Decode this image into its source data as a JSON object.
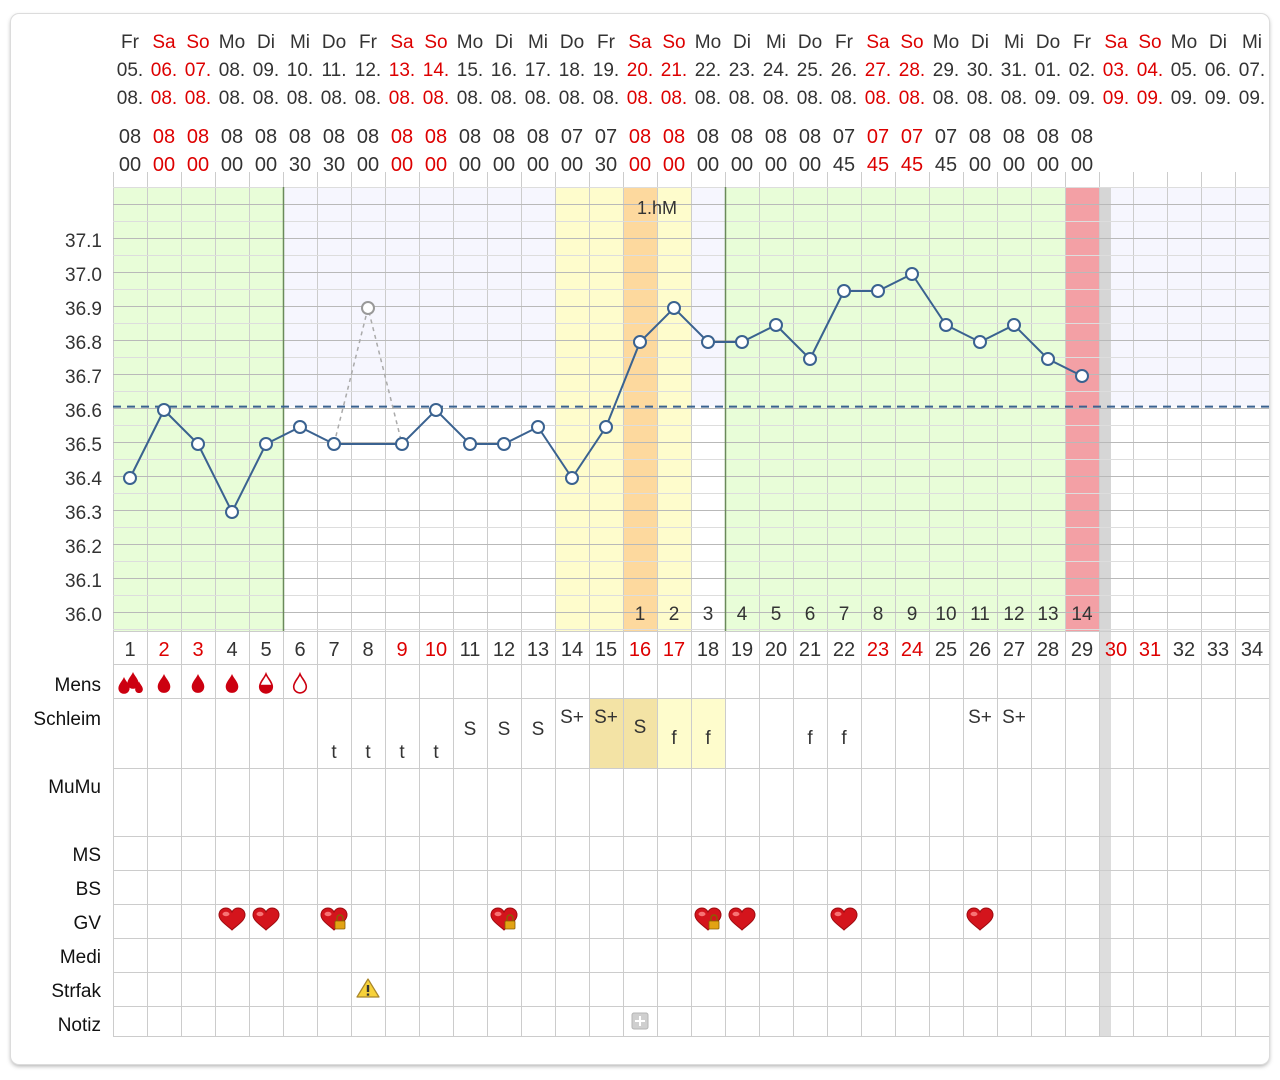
{
  "colors": {
    "weekend_red": "#dd0000",
    "text": "#333333",
    "grid": "#cccccc",
    "line": "#3a6290",
    "dashed": "#3a6290",
    "infertile_bg": "#e8fdd8",
    "yellow_bg": "#fefccc",
    "orange_bg": "#fdd99e",
    "red_bg": "#f3a0a5",
    "lavender_bg": "#f6f6fe",
    "gray_col": "#dddddd"
  },
  "days": [
    {
      "wd": "Fr",
      "day": "05.",
      "month": "08.",
      "hh": "08",
      "mm": "00",
      "weekend": false
    },
    {
      "wd": "Sa",
      "day": "06.",
      "month": "08.",
      "hh": "08",
      "mm": "00",
      "weekend": true
    },
    {
      "wd": "So",
      "day": "07.",
      "month": "08.",
      "hh": "08",
      "mm": "00",
      "weekend": true
    },
    {
      "wd": "Mo",
      "day": "08.",
      "month": "08.",
      "hh": "08",
      "mm": "00",
      "weekend": false
    },
    {
      "wd": "Di",
      "day": "09.",
      "month": "08.",
      "hh": "08",
      "mm": "00",
      "weekend": false
    },
    {
      "wd": "Mi",
      "day": "10.",
      "month": "08.",
      "hh": "08",
      "mm": "30",
      "weekend": false
    },
    {
      "wd": "Do",
      "day": "11.",
      "month": "08.",
      "hh": "08",
      "mm": "30",
      "weekend": false
    },
    {
      "wd": "Fr",
      "day": "12.",
      "month": "08.",
      "hh": "08",
      "mm": "00",
      "weekend": false
    },
    {
      "wd": "Sa",
      "day": "13.",
      "month": "08.",
      "hh": "08",
      "mm": "00",
      "weekend": true
    },
    {
      "wd": "So",
      "day": "14.",
      "month": "08.",
      "hh": "08",
      "mm": "00",
      "weekend": true
    },
    {
      "wd": "Mo",
      "day": "15.",
      "month": "08.",
      "hh": "08",
      "mm": "00",
      "weekend": false
    },
    {
      "wd": "Di",
      "day": "16.",
      "month": "08.",
      "hh": "08",
      "mm": "00",
      "weekend": false
    },
    {
      "wd": "Mi",
      "day": "17.",
      "month": "08.",
      "hh": "08",
      "mm": "00",
      "weekend": false
    },
    {
      "wd": "Do",
      "day": "18.",
      "month": "08.",
      "hh": "07",
      "mm": "00",
      "weekend": false
    },
    {
      "wd": "Fr",
      "day": "19.",
      "month": "08.",
      "hh": "07",
      "mm": "30",
      "weekend": false
    },
    {
      "wd": "Sa",
      "day": "20.",
      "month": "08.",
      "hh": "08",
      "mm": "00",
      "weekend": true
    },
    {
      "wd": "So",
      "day": "21.",
      "month": "08.",
      "hh": "08",
      "mm": "00",
      "weekend": true
    },
    {
      "wd": "Mo",
      "day": "22.",
      "month": "08.",
      "hh": "08",
      "mm": "00",
      "weekend": false
    },
    {
      "wd": "Di",
      "day": "23.",
      "month": "08.",
      "hh": "08",
      "mm": "00",
      "weekend": false
    },
    {
      "wd": "Mi",
      "day": "24.",
      "month": "08.",
      "hh": "08",
      "mm": "00",
      "weekend": false
    },
    {
      "wd": "Do",
      "day": "25.",
      "month": "08.",
      "hh": "08",
      "mm": "00",
      "weekend": false
    },
    {
      "wd": "Fr",
      "day": "26.",
      "month": "08.",
      "hh": "07",
      "mm": "45",
      "weekend": false
    },
    {
      "wd": "Sa",
      "day": "27.",
      "month": "08.",
      "hh": "07",
      "mm": "45",
      "weekend": true
    },
    {
      "wd": "So",
      "day": "28.",
      "month": "08.",
      "hh": "07",
      "mm": "45",
      "weekend": true
    },
    {
      "wd": "Mo",
      "day": "29.",
      "month": "08.",
      "hh": "07",
      "mm": "45",
      "weekend": false
    },
    {
      "wd": "Di",
      "day": "30.",
      "month": "08.",
      "hh": "08",
      "mm": "00",
      "weekend": false
    },
    {
      "wd": "Mi",
      "day": "31.",
      "month": "08.",
      "hh": "08",
      "mm": "00",
      "weekend": false
    },
    {
      "wd": "Do",
      "day": "01.",
      "month": "09.",
      "hh": "08",
      "mm": "00",
      "weekend": false
    },
    {
      "wd": "Fr",
      "day": "02.",
      "month": "09.",
      "hh": "08",
      "mm": "00",
      "weekend": false
    },
    {
      "wd": "Sa",
      "day": "03.",
      "month": "09.",
      "hh": "",
      "mm": "",
      "weekend": true
    },
    {
      "wd": "So",
      "day": "04.",
      "month": "09.",
      "hh": "",
      "mm": "",
      "weekend": true
    },
    {
      "wd": "Mo",
      "day": "05.",
      "month": "09.",
      "hh": "",
      "mm": "",
      "weekend": false
    },
    {
      "wd": "Di",
      "day": "06.",
      "month": "09.",
      "hh": "",
      "mm": "",
      "weekend": false
    },
    {
      "wd": "Mi",
      "day": "07.",
      "month": "09.",
      "hh": "",
      "mm": "",
      "weekend": false
    }
  ],
  "cycle_days": [
    "1",
    "2",
    "3",
    "4",
    "5",
    "6",
    "7",
    "8",
    "9",
    "10",
    "11",
    "12",
    "13",
    "14",
    "15",
    "16",
    "17",
    "18",
    "19",
    "20",
    "21",
    "22",
    "23",
    "24",
    "25",
    "26",
    "27",
    "28",
    "29",
    "30",
    "31",
    "32",
    "33",
    "34"
  ],
  "row_labels": [
    "Mens",
    "Schleim",
    "MuMu",
    "MS",
    "BS",
    "GV",
    "Medi",
    "Strfak",
    "Notiz"
  ],
  "chart_data": {
    "type": "line",
    "x": [
      1,
      2,
      3,
      4,
      5,
      6,
      7,
      8,
      9,
      10,
      11,
      12,
      13,
      14,
      15,
      16,
      17,
      18,
      19,
      20,
      21,
      22,
      23,
      24,
      25,
      26,
      27,
      28,
      29
    ],
    "series": [
      {
        "values": [
          36.4,
          36.6,
          36.5,
          36.3,
          36.5,
          36.55,
          36.5,
          36.9,
          36.5,
          36.6,
          36.5,
          36.5,
          36.55,
          36.4,
          36.55,
          36.8,
          36.9,
          36.8,
          36.8,
          36.85,
          36.75,
          36.95,
          36.95,
          37.0,
          36.85,
          36.8,
          36.85,
          36.75,
          36.7
        ],
        "excluded_days": [
          8
        ]
      }
    ],
    "y_ticks": [
      "37.1",
      "37.0",
      "36.9",
      "36.8",
      "36.7",
      "36.6",
      "36.5",
      "36.4",
      "36.3",
      "36.2",
      "36.1",
      "36.0"
    ],
    "ylim": [
      35.9,
      37.2
    ],
    "coverline": 36.61,
    "annotation": "1.hM",
    "post_ovulation_days": [
      "1",
      "2",
      "3",
      "4",
      "5",
      "6",
      "7",
      "8",
      "9",
      "10",
      "11",
      "12",
      "13",
      "14"
    ],
    "post_ovulation_start_day": 16,
    "grid": true
  },
  "mens": [
    {
      "day": 1,
      "icon": "heavy-blood-drops-icon"
    },
    {
      "day": 2,
      "icon": "blood-drop-icon"
    },
    {
      "day": 3,
      "icon": "blood-drop-icon"
    },
    {
      "day": 4,
      "icon": "blood-drop-icon"
    },
    {
      "day": 5,
      "icon": "half-blood-drop-icon"
    },
    {
      "day": 6,
      "icon": "empty-drop-icon"
    }
  ],
  "schleim": [
    {
      "day": 7,
      "text": "t"
    },
    {
      "day": 8,
      "text": "t"
    },
    {
      "day": 9,
      "text": "t"
    },
    {
      "day": 10,
      "text": "t"
    },
    {
      "day": 11,
      "text": "S"
    },
    {
      "day": 12,
      "text": "S"
    },
    {
      "day": 13,
      "text": "S"
    },
    {
      "day": 14,
      "text": "S+"
    },
    {
      "day": 15,
      "text": "S+"
    },
    {
      "day": 16,
      "text": "S"
    },
    {
      "day": 17,
      "text": "f"
    },
    {
      "day": 18,
      "text": "f"
    },
    {
      "day": 21,
      "text": "f"
    },
    {
      "day": 22,
      "text": "f"
    },
    {
      "day": 26,
      "text": "S+"
    },
    {
      "day": 27,
      "text": "S+"
    }
  ],
  "gv": [
    {
      "day": 4,
      "locked": false
    },
    {
      "day": 5,
      "locked": false
    },
    {
      "day": 7,
      "locked": true
    },
    {
      "day": 12,
      "locked": true
    },
    {
      "day": 18,
      "locked": true
    },
    {
      "day": 19,
      "locked": false
    },
    {
      "day": 22,
      "locked": false
    },
    {
      "day": 26,
      "locked": false
    }
  ],
  "strfak": [
    {
      "day": 8,
      "icon": "warning-icon"
    }
  ],
  "notiz": [
    {
      "day": 16,
      "icon": "add-note-icon"
    }
  ]
}
